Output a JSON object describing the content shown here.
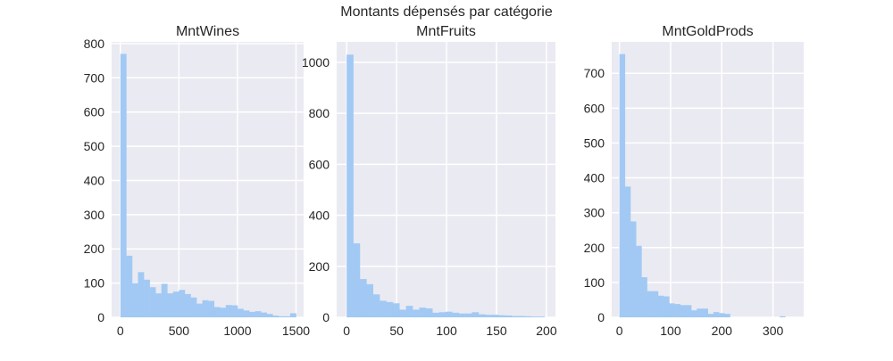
{
  "figure": {
    "suptitle": "Montants dépensés par catégorie"
  },
  "colors": {
    "axes_background": "#eaeaf2",
    "grid": "#ffffff",
    "bar": "#a1c9f4",
    "text": "#262626"
  },
  "chart_data": [
    {
      "type": "bar",
      "subtype": "histogram",
      "title": "MntWines",
      "xlabel": "",
      "ylabel": "",
      "xlim": [
        -75,
        1565
      ],
      "ylim": [
        0,
        805
      ],
      "xticks": [
        0,
        500,
        1000,
        1500
      ],
      "yticks": [
        0,
        100,
        200,
        300,
        400,
        500,
        600,
        700,
        800
      ],
      "grid": true,
      "bin_width": 50,
      "bins_start": 0,
      "values": [
        770,
        180,
        100,
        132,
        110,
        88,
        70,
        98,
        70,
        75,
        80,
        68,
        58,
        40,
        50,
        48,
        30,
        28,
        36,
        35,
        25,
        20,
        16,
        18,
        14,
        10,
        5,
        3,
        3,
        12
      ]
    },
    {
      "type": "bar",
      "subtype": "histogram",
      "title": "MntFruits",
      "xlabel": "",
      "ylabel": "",
      "xlim": [
        -10,
        209
      ],
      "ylim": [
        0,
        1080
      ],
      "xticks": [
        0,
        50,
        100,
        150,
        200
      ],
      "yticks": [
        0,
        200,
        400,
        600,
        800,
        1000
      ],
      "grid": true,
      "bin_width": 6.6,
      "bins_start": 0,
      "values": [
        1030,
        290,
        150,
        130,
        90,
        65,
        60,
        55,
        30,
        45,
        30,
        38,
        35,
        18,
        20,
        22,
        18,
        15,
        15,
        20,
        12,
        10,
        10,
        8,
        7,
        5,
        5,
        4,
        3,
        3
      ]
    },
    {
      "type": "bar",
      "subtype": "histogram",
      "title": "MntGoldProds",
      "xlabel": "",
      "ylabel": "",
      "xlim": [
        -15,
        360
      ],
      "ylim": [
        0,
        790
      ],
      "xticks": [
        0,
        100,
        200,
        300
      ],
      "yticks": [
        0,
        100,
        200,
        300,
        400,
        500,
        600,
        700
      ],
      "grid": true,
      "bin_width": 10.8,
      "bins_start": 0,
      "values": [
        755,
        375,
        275,
        205,
        115,
        75,
        75,
        62,
        60,
        40,
        38,
        35,
        35,
        20,
        25,
        25,
        10,
        15,
        12,
        10,
        0,
        0,
        0,
        0,
        0,
        0,
        0,
        0,
        0,
        3
      ]
    }
  ]
}
